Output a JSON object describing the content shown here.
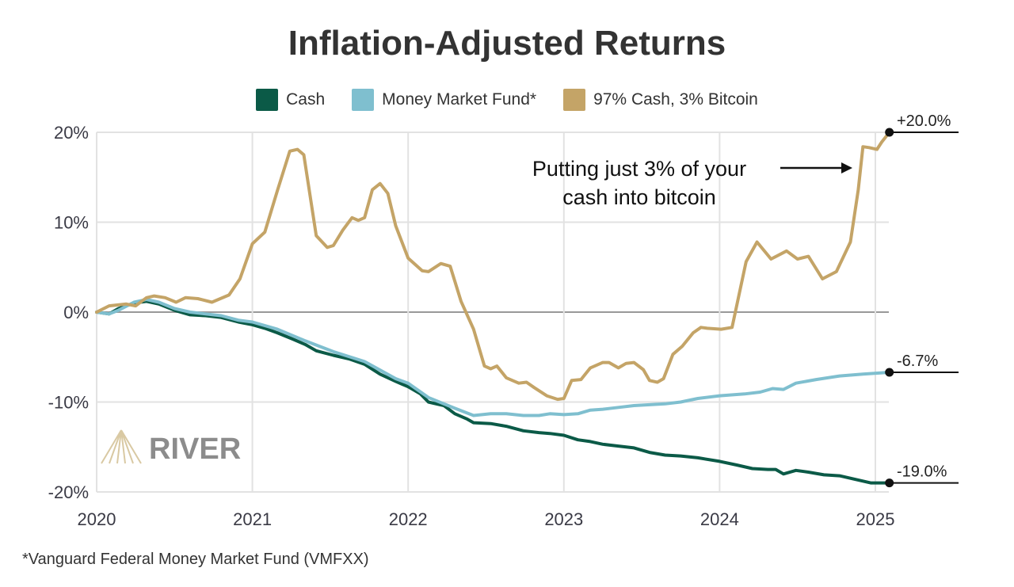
{
  "chart_data": {
    "type": "line",
    "title": "Inflation-Adjusted Returns",
    "xlim": [
      2020,
      2025.09
    ],
    "ylim": [
      -20,
      20
    ],
    "x_ticks": [
      2020,
      2021,
      2022,
      2023,
      2024,
      2025
    ],
    "x_tick_labels": [
      "2020",
      "2021",
      "2022",
      "2023",
      "2024",
      "2025"
    ],
    "y_ticks": [
      20,
      10,
      0,
      -10,
      -20
    ],
    "y_tick_labels": [
      "20%",
      "10%",
      "0%",
      "-10%",
      "-20%"
    ],
    "grid": true,
    "legend_position": "top-center",
    "series": [
      {
        "name": "Cash",
        "color": "#0b5a47",
        "end_label": "-19.0%",
        "x": [
          2020.0,
          2020.08,
          2020.14,
          2020.24,
          2020.32,
          2020.4,
          2020.5,
          2020.6,
          2020.7,
          2020.8,
          2020.91,
          2021.0,
          2021.08,
          2021.16,
          2021.26,
          2021.34,
          2021.41,
          2021.52,
          2021.62,
          2021.72,
          2021.82,
          2021.92,
          2022.0,
          2022.08,
          2022.13,
          2022.23,
          2022.3,
          2022.38,
          2022.42,
          2022.53,
          2022.63,
          2022.74,
          2022.84,
          2022.91,
          2023.0,
          2023.09,
          2023.17,
          2023.25,
          2023.35,
          2023.45,
          2023.55,
          2023.65,
          2023.75,
          2023.86,
          2024.0,
          2024.11,
          2024.21,
          2024.31,
          2024.36,
          2024.41,
          2024.49,
          2024.57,
          2024.67,
          2024.77,
          2024.87,
          2024.97,
          2025.09
        ],
        "y": [
          0,
          -0.2,
          0.4,
          1.0,
          1.2,
          0.9,
          0.2,
          -0.3,
          -0.4,
          -0.6,
          -1.1,
          -1.4,
          -1.8,
          -2.3,
          -3.0,
          -3.6,
          -4.3,
          -4.8,
          -5.2,
          -5.8,
          -6.9,
          -7.7,
          -8.3,
          -9.1,
          -10.0,
          -10.4,
          -11.3,
          -11.9,
          -12.3,
          -12.4,
          -12.7,
          -13.2,
          -13.4,
          -13.5,
          -13.7,
          -14.2,
          -14.4,
          -14.7,
          -14.9,
          -15.1,
          -15.6,
          -15.9,
          -16.0,
          -16.2,
          -16.6,
          -17.0,
          -17.4,
          -17.5,
          -17.5,
          -18.0,
          -17.6,
          -17.8,
          -18.1,
          -18.2,
          -18.6,
          -19.0,
          -19.0
        ]
      },
      {
        "name": "Money Market Fund*",
        "color": "#7fbfcf",
        "end_label": "-6.7%",
        "x": [
          2020.0,
          2020.08,
          2020.14,
          2020.24,
          2020.32,
          2020.4,
          2020.5,
          2020.6,
          2020.7,
          2020.8,
          2020.91,
          2021.0,
          2021.16,
          2021.34,
          2021.52,
          2021.72,
          2021.92,
          2022.0,
          2022.13,
          2022.3,
          2022.42,
          2022.53,
          2022.63,
          2022.74,
          2022.84,
          2022.91,
          2023.0,
          2023.09,
          2023.17,
          2023.25,
          2023.35,
          2023.45,
          2023.55,
          2023.65,
          2023.75,
          2023.86,
          2024.0,
          2024.16,
          2024.26,
          2024.34,
          2024.41,
          2024.49,
          2024.62,
          2024.77,
          2024.92,
          2025.09
        ],
        "y": [
          0,
          -0.2,
          0.2,
          1.1,
          1.4,
          1.1,
          0.4,
          0,
          -0.2,
          -0.4,
          -0.9,
          -1.1,
          -1.9,
          -3.2,
          -4.4,
          -5.5,
          -7.4,
          -7.9,
          -9.5,
          -10.7,
          -11.5,
          -11.3,
          -11.3,
          -11.5,
          -11.5,
          -11.3,
          -11.4,
          -11.3,
          -10.9,
          -10.8,
          -10.6,
          -10.4,
          -10.3,
          -10.2,
          -10.0,
          -9.6,
          -9.3,
          -9.1,
          -8.9,
          -8.5,
          -8.6,
          -7.9,
          -7.5,
          -7.1,
          -6.9,
          -6.7
        ]
      },
      {
        "name": "97% Cash, 3% Bitcoin",
        "color": "#c4a467",
        "end_label": "+20.0%",
        "x": [
          2020.0,
          2020.08,
          2020.19,
          2020.25,
          2020.32,
          2020.37,
          2020.44,
          2020.51,
          2020.57,
          2020.65,
          2020.74,
          2020.85,
          2020.92,
          2021.0,
          2021.08,
          2021.16,
          2021.24,
          2021.29,
          2021.33,
          2021.41,
          2021.48,
          2021.52,
          2021.58,
          2021.64,
          2021.68,
          2021.72,
          2021.77,
          2021.82,
          2021.87,
          2021.92,
          2022.0,
          2022.09,
          2022.13,
          2022.21,
          2022.27,
          2022.34,
          2022.42,
          2022.49,
          2022.53,
          2022.57,
          2022.63,
          2022.71,
          2022.76,
          2022.81,
          2022.89,
          2022.96,
          2023.0,
          2023.05,
          2023.11,
          2023.17,
          2023.25,
          2023.29,
          2023.35,
          2023.4,
          2023.45,
          2023.51,
          2023.55,
          2023.6,
          2023.64,
          2023.7,
          2023.76,
          2023.83,
          2023.88,
          2023.92,
          2024.01,
          2024.08,
          2024.17,
          2024.24,
          2024.33,
          2024.43,
          2024.5,
          2024.57,
          2024.66,
          2024.75,
          2024.84,
          2024.89,
          2024.92,
          2024.96,
          2025.01,
          2025.04,
          2025.09
        ],
        "y": [
          0,
          0.7,
          0.9,
          0.7,
          1.6,
          1.8,
          1.6,
          1.1,
          1.6,
          1.5,
          1.1,
          1.9,
          3.7,
          7.6,
          8.9,
          13.5,
          17.9,
          18.1,
          17.5,
          8.5,
          7.2,
          7.4,
          9.1,
          10.5,
          10.2,
          10.5,
          13.6,
          14.3,
          13.2,
          9.6,
          6.0,
          4.6,
          4.5,
          5.4,
          5.1,
          1.2,
          -1.9,
          -6.0,
          -6.3,
          -6.0,
          -7.3,
          -7.9,
          -7.8,
          -8.4,
          -9.3,
          -9.7,
          -9.6,
          -7.6,
          -7.5,
          -6.2,
          -5.6,
          -5.6,
          -6.2,
          -5.7,
          -5.6,
          -6.4,
          -7.6,
          -7.8,
          -7.4,
          -4.7,
          -3.8,
          -2.3,
          -1.7,
          -1.8,
          -1.9,
          -1.7,
          5.6,
          7.8,
          5.9,
          6.8,
          5.9,
          6.2,
          3.7,
          4.5,
          7.8,
          13.6,
          18.4,
          18.3,
          18.1,
          18.9,
          20.0
        ]
      }
    ],
    "annotation": {
      "lines": [
        "Putting just 3% of your",
        "cash into bitcoin"
      ]
    },
    "watermark": "RIVER",
    "footnote": "*Vanguard Federal Money Market Fund (VMFXX)"
  }
}
